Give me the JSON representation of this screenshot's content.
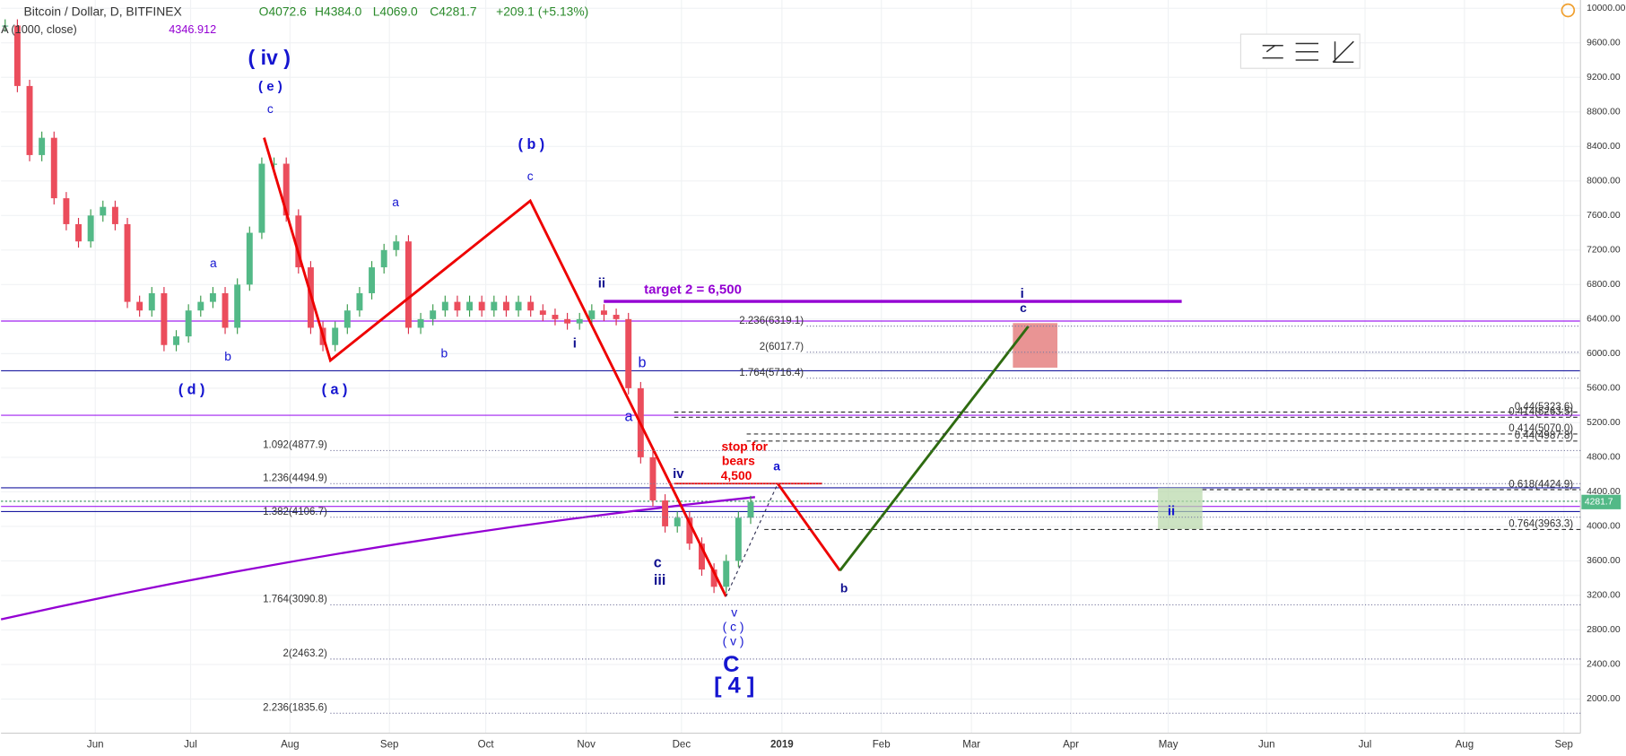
{
  "header": {
    "symbol": "Bitcoin / Dollar, D, BITFINEX",
    "open": "O4072.6",
    "high": "H4384.0",
    "low": "L4069.0",
    "close": "C4281.7",
    "change": "+209.1 (+5.13%)",
    "indicator": "A (1000, close)",
    "indicator_value": "4346.912"
  },
  "chart_data": {
    "type": "candlestick",
    "closes": [
      9800,
      9100,
      8300,
      8500,
      7800,
      7500,
      7300,
      7600,
      7700,
      7500,
      6600,
      6500,
      6700,
      6100,
      6200,
      6500,
      6600,
      6700,
      6300,
      6800,
      7400,
      8200,
      8200,
      7600,
      7000,
      6300,
      6100,
      6300,
      6500,
      6700,
      7000,
      7200,
      7300,
      6300,
      6400,
      6500,
      6600,
      6500,
      6600,
      6500,
      6600,
      6500,
      6600,
      6500,
      6450,
      6400,
      6350,
      6400,
      6500,
      6450,
      6400,
      5600,
      4800,
      4300,
      4000,
      4100,
      3800,
      3500,
      3300,
      3600,
      4100,
      4281.7
    ],
    "ylim": [
      2000,
      10000
    ],
    "yticks": [
      {
        "value": 10000,
        "label": "10000.00"
      },
      {
        "value": 9600,
        "label": "9600.00"
      },
      {
        "value": 9200,
        "label": "9200.00"
      },
      {
        "value": 8800,
        "label": "8800.00"
      },
      {
        "value": 8400,
        "label": "8400.00"
      },
      {
        "value": 8000,
        "label": "8000.00"
      },
      {
        "value": 7600,
        "label": "7600.00"
      },
      {
        "value": 7200,
        "label": "7200.00"
      },
      {
        "value": 6800,
        "label": "6800.00"
      },
      {
        "value": 6400,
        "label": "6400.00"
      },
      {
        "value": 6000,
        "label": "6000.00"
      },
      {
        "value": 5600,
        "label": "5600.00"
      },
      {
        "value": 5200,
        "label": "5200.00"
      },
      {
        "value": 4800,
        "label": "4800.00"
      },
      {
        "value": 4400,
        "label": "4400.00"
      },
      {
        "value": 4000,
        "label": "4000.00"
      },
      {
        "value": 3600,
        "label": "3600.00"
      },
      {
        "value": 3200,
        "label": "3200.00"
      },
      {
        "value": 2800,
        "label": "2800.00"
      },
      {
        "value": 2400,
        "label": "2400.00"
      },
      {
        "value": 2000,
        "label": "2000.00"
      }
    ],
    "categories": [
      "Jun",
      "Jul",
      "Aug",
      "Sep",
      "Oct",
      "Nov",
      "Dec",
      "2019",
      "Feb",
      "Mar",
      "Apr",
      "May",
      "Jun",
      "Jul",
      "Aug",
      "Sep"
    ],
    "last_price": {
      "value": 4281.7,
      "label": "4281.7"
    },
    "fibs": [
      {
        "label": "2.236(6319.1)",
        "price": 6319.1
      },
      {
        "label": "2(6017.7)",
        "price": 6017.7
      },
      {
        "label": "1.764(5716.4)",
        "price": 5716.4
      },
      {
        "label": "1.092(4877.9)",
        "price": 4877.9
      },
      {
        "label": "1.236(4494.9)",
        "price": 4494.9
      },
      {
        "label": "1.382(4106.7)",
        "price": 4106.7
      },
      {
        "label": "1.764(3090.8)",
        "price": 3090.8
      },
      {
        "label": "2(2463.2)",
        "price": 2463.2
      },
      {
        "label": "2.236(1835.6)",
        "price": 1835.6
      },
      {
        "label": "0.44(5323.6)",
        "price": 5323.6
      },
      {
        "label": "0.414(5263.5)",
        "price": 5263.5
      },
      {
        "label": "0.414(5070.0)",
        "price": 5070.0
      },
      {
        "label": "0.44(4987.8)",
        "price": 4987.8
      },
      {
        "label": "0.618(4424.9)",
        "price": 4424.9
      },
      {
        "label": "0.764(3963.3)",
        "price": 3963.3
      }
    ],
    "annotations": [
      "( iv )",
      "( e )",
      "c",
      "( b )",
      "c",
      "a",
      "a",
      "b",
      "( d )",
      "( a )",
      "b",
      "ii",
      "target 2 = 6,500",
      "i",
      "b",
      "a",
      "stop for",
      "bears",
      "4,500",
      "iv",
      "a",
      "c",
      "iii",
      "v",
      "( c )",
      "( v )",
      "C",
      "[ 4 ]",
      "b",
      "i",
      "c",
      "ii"
    ]
  }
}
